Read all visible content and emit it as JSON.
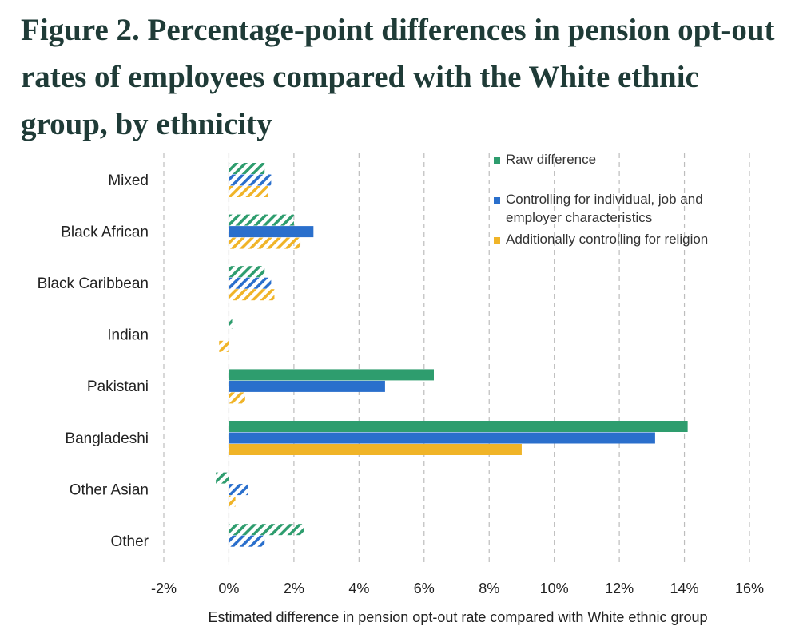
{
  "title": "Figure 2. Percentage-point differences in pension opt-out rates of employees compared with the White ethnic group, by ethnicity",
  "chart_data": {
    "type": "bar",
    "orientation": "horizontal",
    "categories": [
      "Mixed",
      "Black African",
      "Black Caribbean",
      "Indian",
      "Pakistani",
      "Bangladeshi",
      "Other Asian",
      "Other"
    ],
    "series": [
      {
        "name": "Raw difference",
        "color": "#2e9d6e",
        "values": [
          1.1,
          2.0,
          1.1,
          0.1,
          6.3,
          14.1,
          -0.4,
          2.3
        ],
        "significant": [
          false,
          false,
          false,
          false,
          true,
          true,
          false,
          false
        ]
      },
      {
        "name": "Controlling for individual, job and employer characteristics",
        "color": "#2a6fcc",
        "values": [
          1.3,
          2.6,
          1.3,
          null,
          4.8,
          13.1,
          0.6,
          1.1
        ],
        "significant": [
          false,
          true,
          false,
          false,
          true,
          true,
          false,
          false
        ]
      },
      {
        "name": "Additionally controlling for religion",
        "color": "#f0b428",
        "values": [
          1.2,
          2.2,
          1.4,
          -0.3,
          0.5,
          9.0,
          0.2,
          null
        ],
        "significant": [
          false,
          false,
          false,
          false,
          false,
          true,
          false,
          false
        ]
      }
    ],
    "xlim": [
      -2,
      16
    ],
    "xticks": [
      -2,
      0,
      2,
      4,
      6,
      8,
      10,
      12,
      14,
      16
    ],
    "xtick_labels": [
      "-2%",
      "0%",
      "2%",
      "4%",
      "6%",
      "8%",
      "10%",
      "12%",
      "14%",
      "16%"
    ],
    "xlabel": "Estimated difference in pension opt-out rate compared with White ethnic group",
    "ylabel": "",
    "grid": "vertical dashed",
    "legend_position": "top-right",
    "legend_lines": [
      [
        "Raw difference"
      ],
      [
        "Controlling for individual, job and",
        "employer characteristics"
      ],
      [
        "Additionally controlling for religion"
      ]
    ]
  }
}
